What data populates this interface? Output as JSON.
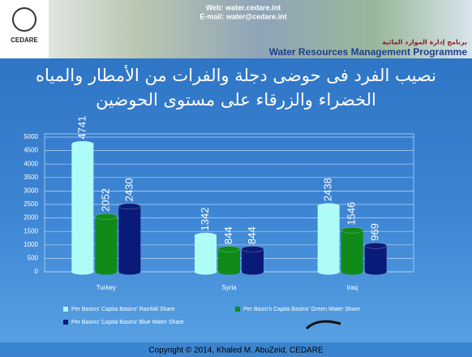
{
  "header": {
    "logo": "CEDARE",
    "web": "Web: water.cedare.int",
    "email": "E-mail: water@cedare.int",
    "programme": "Water Resources Management Programme",
    "programme_ar": "برنامج إدارة الموارد المائية"
  },
  "footer": "Copyright © 2014, Khaled M. AbuZeid, CEDARE",
  "chart_data": {
    "type": "bar",
    "title": "نصيب الفرد فى حوضى دجلة والفرات من الأمطار والمياه الخضراء والزرقاء على مستوى الحوضين",
    "categories": [
      "Turkey",
      "Syria",
      "Iraq"
    ],
    "series": [
      {
        "name": "Per Basins' Capita Basins' Rainfall Share",
        "color": "#aefcf6",
        "values": [
          4741,
          1342,
          2438
        ]
      },
      {
        "name": "Per Basin's Capita Basins' Green Water Share",
        "color": "#108a18",
        "values": [
          2052,
          844,
          1546
        ]
      },
      {
        "name": "Per Basins' Capita Basins' Blue Water Share",
        "color": "#0a1a78",
        "values": [
          2430,
          844,
          969
        ]
      }
    ],
    "ylim": [
      0,
      5000
    ],
    "yticks": [
      0,
      500,
      1000,
      1500,
      2000,
      2500,
      3000,
      3500,
      4000,
      4500,
      5000
    ],
    "grid": true
  }
}
